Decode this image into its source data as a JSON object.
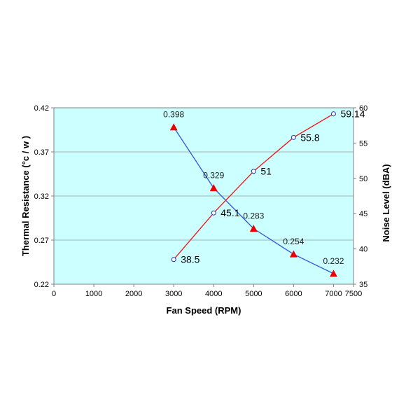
{
  "chart_data": {
    "type": "line",
    "title": "",
    "xlabel": "Fan Speed (RPM)",
    "ylabel": "Thermal Resistance (°c / w )",
    "y2label": "Noise Level (dBA)",
    "xlim": [
      0,
      7500
    ],
    "ylim": [
      0.22,
      0.42
    ],
    "y2lim": [
      35,
      60
    ],
    "x_ticks": [
      "0",
      "1000",
      "2000",
      "3000",
      "4000",
      "5000",
      "6000",
      "7000",
      "7500"
    ],
    "y_ticks": [
      "0.22",
      "0.27",
      "0.32",
      "0.37",
      "0.42"
    ],
    "y2_ticks": [
      "35",
      "40",
      "45",
      "50",
      "55",
      "60"
    ],
    "grid": true,
    "background_color": "#ccffff",
    "series": [
      {
        "axis": "left",
        "color": "#3355dd",
        "marker": "red-triangle",
        "x": [
          3000,
          4000,
          5000,
          6000,
          7000
        ],
        "values": [
          0.398,
          0.329,
          0.283,
          0.254,
          0.232
        ],
        "labels": [
          "0.398",
          "0.329",
          "0.283",
          "0.254",
          "0.232"
        ]
      },
      {
        "axis": "right",
        "color": "#ee1111",
        "marker": "blue-open-circle",
        "x": [
          3000,
          4000,
          5000,
          6000,
          7000
        ],
        "values": [
          38.5,
          45.1,
          51,
          55.8,
          59.14
        ],
        "labels": [
          "38.5",
          "45.1",
          "51",
          "55.8",
          "59.14"
        ]
      }
    ]
  }
}
